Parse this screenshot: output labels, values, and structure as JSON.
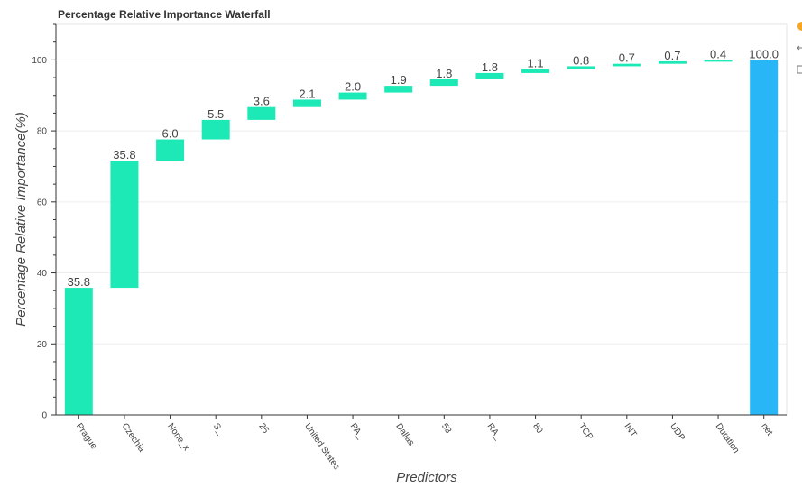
{
  "chart_data": {
    "type": "bar",
    "title": "Percentage Relative Importance Waterfall",
    "xlabel": "Predictors",
    "ylabel": "Percentage Relative Importance(%)",
    "ylim": [
      0,
      110
    ],
    "yticks": [
      "0",
      "20",
      "40",
      "60",
      "80",
      "100"
    ],
    "grid": true,
    "categories": [
      "Prague",
      "Czechia",
      "None_x",
      "S_",
      "25",
      "United States",
      "PA_",
      "Dallas",
      "53",
      "RA_",
      "80",
      "TCP",
      "INT",
      "UDP",
      "Duration",
      "net"
    ],
    "values": [
      35.8,
      35.8,
      6.0,
      5.5,
      3.6,
      2.1,
      2.0,
      1.9,
      1.8,
      1.8,
      1.1,
      0.8,
      0.7,
      0.7,
      0.4,
      100.0
    ],
    "labels": [
      "35.8",
      "35.8",
      "6.0",
      "5.5",
      "3.6",
      "2.1",
      "2.0",
      "1.9",
      "1.8",
      "1.8",
      "1.1",
      "0.8",
      "0.7",
      "0.7",
      "0.4",
      "100.0"
    ],
    "colors": {
      "increase": "#1de9b6",
      "total": "#29b6f6"
    }
  }
}
